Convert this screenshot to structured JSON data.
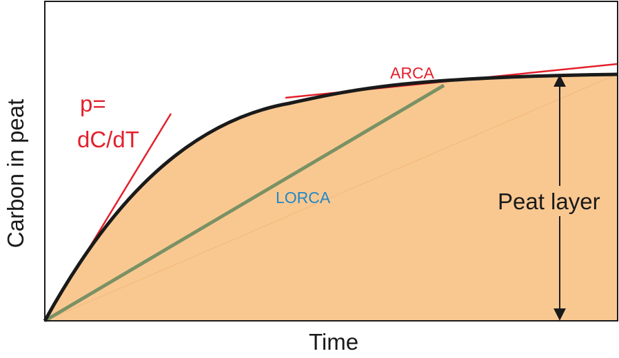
{
  "axes": {
    "x_label": "Time",
    "y_label": "Carbon in peat"
  },
  "annotations": {
    "slope_line1": "p=",
    "slope_line2": "dC/dT",
    "arca": "ARCA",
    "lorca": "LORCA",
    "peat_layer": "Peat layer"
  },
  "colors": {
    "fill": "#F9C891",
    "curve": "#1a1a1a",
    "tangent": "#E3202B",
    "lorca_line": "#7A9164",
    "lorca_text": "#1E88C7",
    "arrow": "#1a1a1a",
    "frame": "#1a1a1a"
  }
}
